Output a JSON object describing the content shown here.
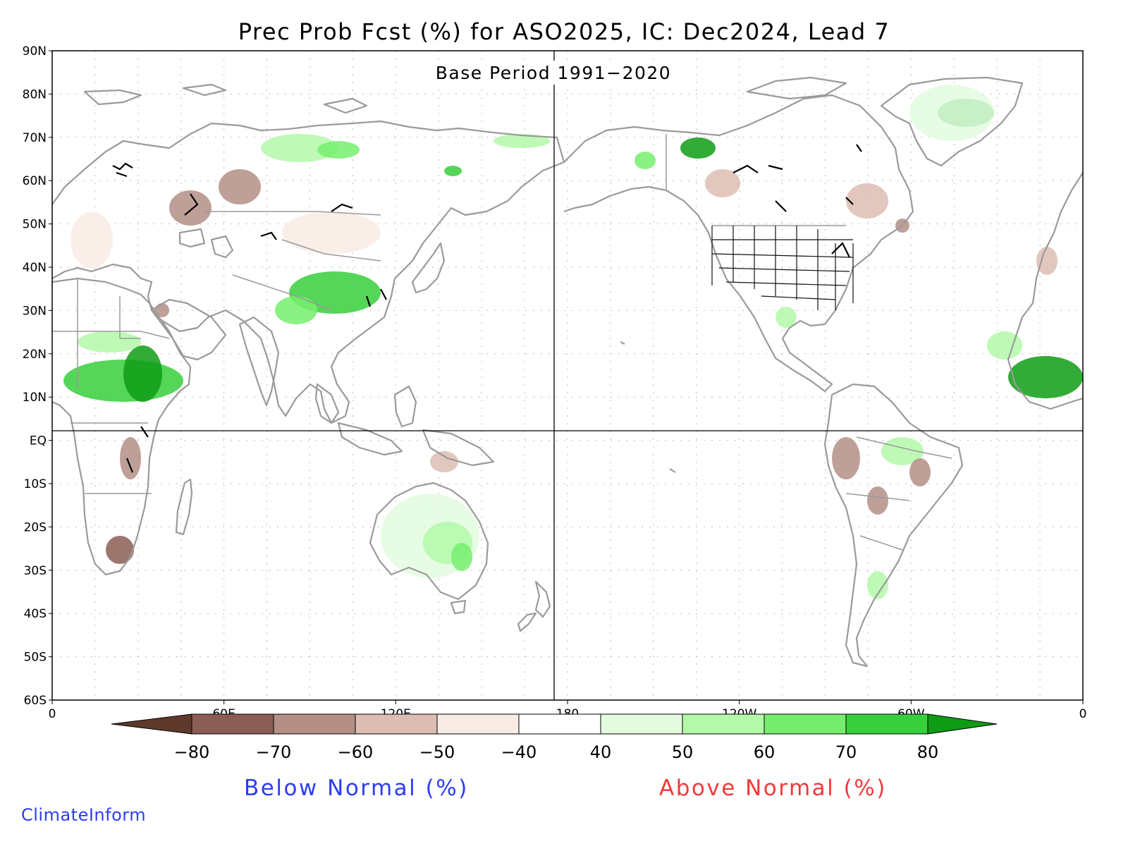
{
  "title": "Prec Prob Fcst (%) for ASO2025, IC: Dec2024, Lead 7",
  "subtitle": "Base Period 1991−2020",
  "lat_labels": [
    "90N",
    "80N",
    "70N",
    "60N",
    "50N",
    "40N",
    "30N",
    "20N",
    "10N",
    "EQ",
    "10S",
    "20S",
    "30S",
    "40S",
    "50S",
    "60S"
  ],
  "lon_labels": [
    "0",
    "60E",
    "120E",
    "180",
    "120W",
    "60W",
    "0"
  ],
  "colorbar": {
    "labels": [
      "−80",
      "−70",
      "−60",
      "−50",
      "−40",
      "40",
      "50",
      "60",
      "70",
      "80"
    ],
    "colors": [
      "#5f392c",
      "#8a5e54",
      "#b38f86",
      "#dcbdb3",
      "#f8ece4",
      "#ffffff",
      "#e3fbdf",
      "#b3f9a9",
      "#76ee6d",
      "#37cf3c",
      "#0f9c15"
    ],
    "below_label": "Below Normal (%)",
    "above_label": "Above Normal (%)"
  },
  "credit": "ClimateInform"
}
